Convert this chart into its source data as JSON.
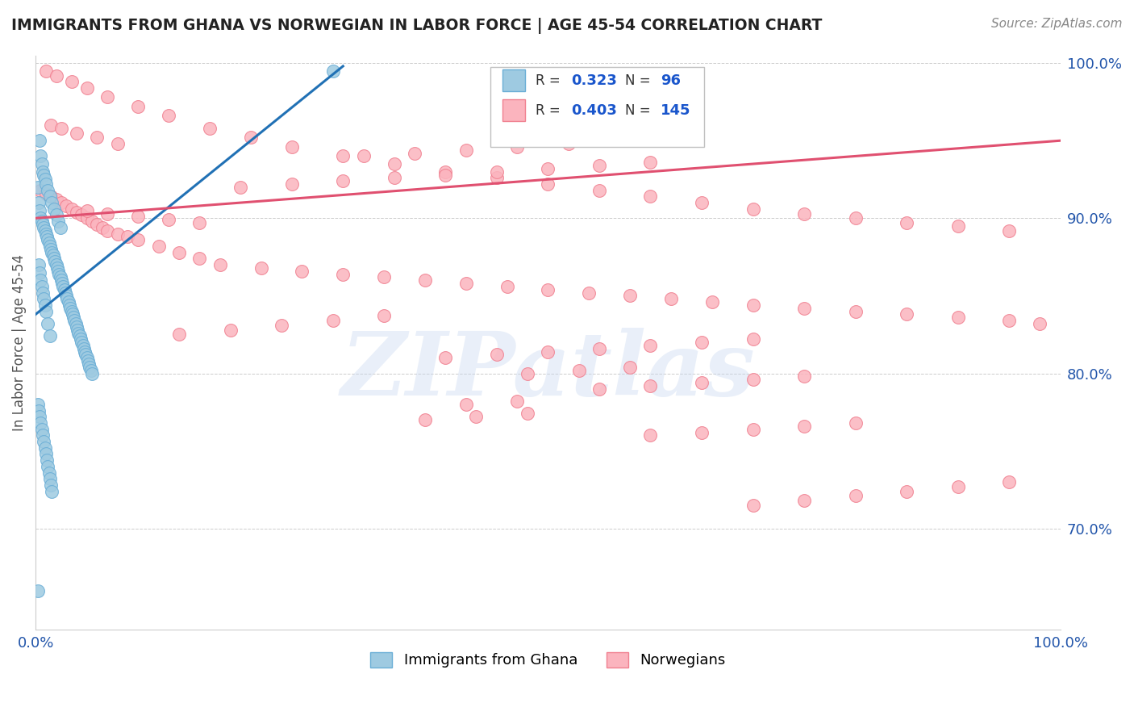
{
  "title": "IMMIGRANTS FROM GHANA VS NORWEGIAN IN LABOR FORCE | AGE 45-54 CORRELATION CHART",
  "source": "Source: ZipAtlas.com",
  "ylabel": "In Labor Force | Age 45-54",
  "xlim": [
    0.0,
    1.0
  ],
  "ylim": [
    0.635,
    1.005
  ],
  "y_ticks_right": [
    0.7,
    0.8,
    0.9,
    1.0
  ],
  "y_tick_labels_right": [
    "70.0%",
    "80.0%",
    "90.0%",
    "100.0%"
  ],
  "ghana_color": "#6aaed6",
  "ghana_color_fill": "#9ecae1",
  "norwegian_color": "#f08090",
  "norwegian_color_fill": "#fbb4be",
  "ghana_R": 0.323,
  "ghana_N": 96,
  "norwegian_R": 0.403,
  "norwegian_N": 145,
  "trend_blue_color": "#2171b5",
  "trend_pink_color": "#e05070",
  "legend_R_color": "#1a56cc",
  "legend_N_color": "#1a56cc",
  "background_color": "#ffffff",
  "watermark": "ZIPatlas",
  "watermark_color": "#c8d8f0",
  "legend_label_ghana": "Immigrants from Ghana",
  "legend_label_norwegian": "Norwegians",
  "ghana_scatter_x": [
    0.002,
    0.003,
    0.004,
    0.005,
    0.006,
    0.007,
    0.008,
    0.009,
    0.01,
    0.011,
    0.012,
    0.013,
    0.014,
    0.015,
    0.016,
    0.017,
    0.018,
    0.019,
    0.02,
    0.021,
    0.022,
    0.023,
    0.024,
    0.025,
    0.026,
    0.027,
    0.028,
    0.029,
    0.03,
    0.031,
    0.032,
    0.033,
    0.034,
    0.035,
    0.036,
    0.037,
    0.038,
    0.039,
    0.04,
    0.041,
    0.042,
    0.043,
    0.044,
    0.045,
    0.046,
    0.047,
    0.048,
    0.049,
    0.05,
    0.051,
    0.052,
    0.053,
    0.054,
    0.055,
    0.004,
    0.005,
    0.006,
    0.007,
    0.008,
    0.009,
    0.01,
    0.012,
    0.014,
    0.016,
    0.018,
    0.02,
    0.022,
    0.024,
    0.003,
    0.004,
    0.005,
    0.006,
    0.007,
    0.008,
    0.009,
    0.01,
    0.012,
    0.014,
    0.002,
    0.003,
    0.004,
    0.005,
    0.006,
    0.007,
    0.008,
    0.009,
    0.01,
    0.011,
    0.012,
    0.013,
    0.014,
    0.015,
    0.016,
    0.002,
    0.29
  ],
  "ghana_scatter_y": [
    0.92,
    0.91,
    0.905,
    0.9,
    0.898,
    0.896,
    0.894,
    0.892,
    0.89,
    0.888,
    0.886,
    0.884,
    0.882,
    0.88,
    0.878,
    0.876,
    0.874,
    0.872,
    0.87,
    0.868,
    0.866,
    0.864,
    0.862,
    0.86,
    0.858,
    0.856,
    0.854,
    0.852,
    0.85,
    0.848,
    0.846,
    0.844,
    0.842,
    0.84,
    0.838,
    0.836,
    0.834,
    0.832,
    0.83,
    0.828,
    0.826,
    0.824,
    0.822,
    0.82,
    0.818,
    0.816,
    0.814,
    0.812,
    0.81,
    0.808,
    0.806,
    0.804,
    0.802,
    0.8,
    0.95,
    0.94,
    0.935,
    0.93,
    0.928,
    0.925,
    0.922,
    0.918,
    0.914,
    0.91,
    0.906,
    0.902,
    0.898,
    0.894,
    0.87,
    0.865,
    0.86,
    0.856,
    0.852,
    0.848,
    0.844,
    0.84,
    0.832,
    0.824,
    0.78,
    0.776,
    0.772,
    0.768,
    0.764,
    0.76,
    0.756,
    0.752,
    0.748,
    0.744,
    0.74,
    0.736,
    0.732,
    0.728,
    0.724,
    0.66,
    0.995
  ],
  "norwegian_scatter_x": [
    0.005,
    0.01,
    0.015,
    0.02,
    0.025,
    0.03,
    0.035,
    0.04,
    0.045,
    0.05,
    0.055,
    0.06,
    0.065,
    0.07,
    0.08,
    0.09,
    0.1,
    0.12,
    0.14,
    0.16,
    0.015,
    0.025,
    0.04,
    0.06,
    0.08,
    0.01,
    0.02,
    0.035,
    0.05,
    0.07,
    0.1,
    0.13,
    0.17,
    0.21,
    0.25,
    0.3,
    0.35,
    0.4,
    0.45,
    0.5,
    0.55,
    0.6,
    0.65,
    0.7,
    0.75,
    0.8,
    0.85,
    0.9,
    0.95,
    0.18,
    0.22,
    0.26,
    0.3,
    0.34,
    0.38,
    0.42,
    0.46,
    0.5,
    0.54,
    0.58,
    0.62,
    0.66,
    0.7,
    0.75,
    0.8,
    0.85,
    0.9,
    0.95,
    0.98,
    0.2,
    0.25,
    0.3,
    0.35,
    0.4,
    0.45,
    0.5,
    0.55,
    0.6,
    0.32,
    0.37,
    0.42,
    0.47,
    0.52,
    0.57,
    0.14,
    0.19,
    0.24,
    0.29,
    0.34,
    0.05,
    0.07,
    0.1,
    0.13,
    0.16,
    0.4,
    0.45,
    0.5,
    0.55,
    0.6,
    0.65,
    0.7,
    0.55,
    0.6,
    0.65,
    0.7,
    0.75,
    0.48,
    0.53,
    0.58,
    0.42,
    0.47,
    0.38,
    0.43,
    0.48,
    0.6,
    0.65,
    0.7,
    0.75,
    0.8,
    0.7,
    0.75,
    0.8,
    0.85,
    0.9,
    0.95
  ],
  "norwegian_scatter_y": [
    0.918,
    0.916,
    0.914,
    0.912,
    0.91,
    0.908,
    0.906,
    0.904,
    0.902,
    0.9,
    0.898,
    0.896,
    0.894,
    0.892,
    0.89,
    0.888,
    0.886,
    0.882,
    0.878,
    0.874,
    0.96,
    0.958,
    0.955,
    0.952,
    0.948,
    0.995,
    0.992,
    0.988,
    0.984,
    0.978,
    0.972,
    0.966,
    0.958,
    0.952,
    0.946,
    0.94,
    0.935,
    0.93,
    0.926,
    0.922,
    0.918,
    0.914,
    0.91,
    0.906,
    0.903,
    0.9,
    0.897,
    0.895,
    0.892,
    0.87,
    0.868,
    0.866,
    0.864,
    0.862,
    0.86,
    0.858,
    0.856,
    0.854,
    0.852,
    0.85,
    0.848,
    0.846,
    0.844,
    0.842,
    0.84,
    0.838,
    0.836,
    0.834,
    0.832,
    0.92,
    0.922,
    0.924,
    0.926,
    0.928,
    0.93,
    0.932,
    0.934,
    0.936,
    0.94,
    0.942,
    0.944,
    0.946,
    0.948,
    0.95,
    0.825,
    0.828,
    0.831,
    0.834,
    0.837,
    0.905,
    0.903,
    0.901,
    0.899,
    0.897,
    0.81,
    0.812,
    0.814,
    0.816,
    0.818,
    0.82,
    0.822,
    0.79,
    0.792,
    0.794,
    0.796,
    0.798,
    0.8,
    0.802,
    0.804,
    0.78,
    0.782,
    0.77,
    0.772,
    0.774,
    0.76,
    0.762,
    0.764,
    0.766,
    0.768,
    0.715,
    0.718,
    0.721,
    0.724,
    0.727,
    0.73
  ],
  "blue_trend_x0": 0.0,
  "blue_trend_x1": 0.3,
  "blue_trend_y0": 0.838,
  "blue_trend_y1": 0.998,
  "pink_trend_x0": 0.0,
  "pink_trend_x1": 1.0,
  "pink_trend_y0": 0.9,
  "pink_trend_y1": 0.95
}
